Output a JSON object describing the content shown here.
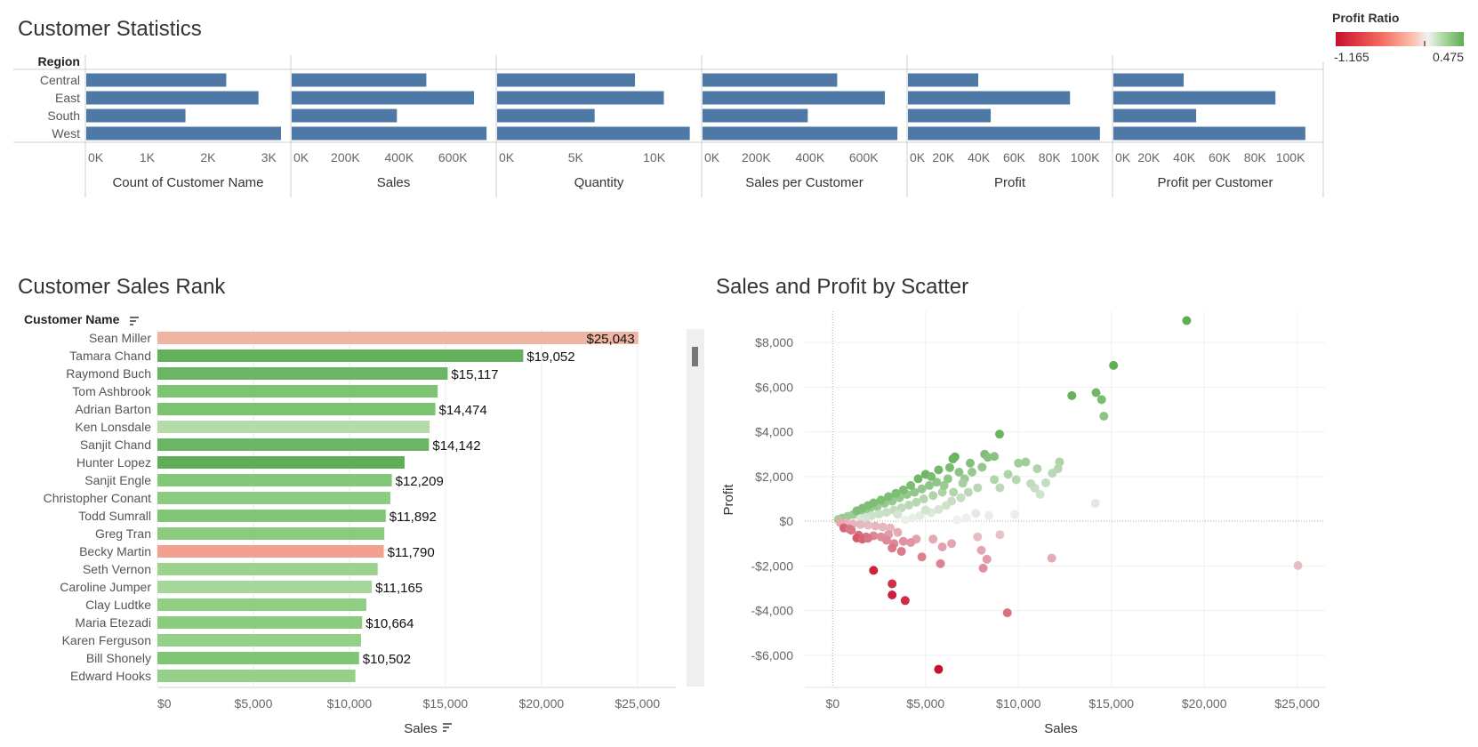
{
  "titles": {
    "stats": "Customer Statistics",
    "rank": "Customer Sales Rank",
    "scatter": "Sales and Profit by Scatter"
  },
  "legend": {
    "title": "Profit Ratio",
    "min_label": "-1.165",
    "max_label": "0.475",
    "colors": {
      "negative": "#c8102e",
      "neutral": "#f4f4f4",
      "positive": "#5cae50"
    }
  },
  "colors": {
    "stat_bar": "#4e79a7"
  },
  "chart_data": [
    {
      "type": "bar",
      "name": "Customer Statistics",
      "row_header": "Region",
      "categories": [
        "Central",
        "East",
        "South",
        "West"
      ],
      "panels": [
        {
          "label": "Count of Customer Name",
          "max": 3200,
          "values": [
            2300,
            2830,
            1630,
            3200
          ],
          "ticks": [
            0,
            1000,
            2000,
            3000
          ],
          "tick_labels": [
            "0K",
            "1K",
            "2K",
            "3K"
          ]
        },
        {
          "label": "Sales",
          "max": 725000,
          "values": [
            501240,
            678781,
            391722,
            725458
          ],
          "ticks": [
            0,
            200000,
            400000,
            600000
          ],
          "tick_labels": [
            "0K",
            "200K",
            "400K",
            "600K"
          ]
        },
        {
          "label": "Quantity",
          "max": 12400,
          "values": [
            8780,
            10618,
            6209,
            12266
          ],
          "ticks": [
            0,
            5000,
            10000
          ],
          "tick_labels": [
            "0K",
            "5K",
            "10K"
          ]
        },
        {
          "label": "Sales per Customer",
          "max": 725000,
          "values": [
            501240,
            678781,
            391722,
            725458
          ],
          "ticks": [
            0,
            200000,
            400000,
            600000
          ],
          "tick_labels": [
            "0K",
            "200K",
            "400K",
            "600K"
          ]
        },
        {
          "label": "Profit",
          "max": 110000,
          "values": [
            39706,
            91523,
            46749,
            108418
          ],
          "ticks": [
            0,
            20000,
            40000,
            60000,
            80000,
            100000
          ],
          "tick_labels": [
            "0K",
            "20K",
            "40K",
            "60K",
            "80K",
            "100K"
          ]
        },
        {
          "label": "Profit per Customer",
          "max": 110000,
          "values": [
            39706,
            91523,
            46749,
            108418
          ],
          "ticks": [
            0,
            20000,
            40000,
            60000,
            80000,
            100000
          ],
          "tick_labels": [
            "0K",
            "20K",
            "40K",
            "60K",
            "80K",
            "100K"
          ]
        }
      ]
    },
    {
      "type": "bar",
      "name": "Customer Sales Rank",
      "row_header": "Customer Name",
      "xlabel": "Sales",
      "xlim": [
        0,
        27000
      ],
      "x_ticks": [
        0,
        5000,
        10000,
        15000,
        20000,
        25000
      ],
      "x_tick_labels": [
        "$0",
        "$5,000",
        "$10,000",
        "$15,000",
        "$20,000",
        "$25,000"
      ],
      "rows": [
        {
          "name": "Sean Miller",
          "value": 25043,
          "label": "$25,043",
          "color": "#f0b4a2"
        },
        {
          "name": "Tamara Chand",
          "value": 19052,
          "label": "$19,052",
          "color": "#63b05d"
        },
        {
          "name": "Raymond Buch",
          "value": 15117,
          "label": "$15,117",
          "color": "#6ab664"
        },
        {
          "name": "Tom Ashbrook",
          "value": 14596,
          "label": "",
          "color": "#7cc472"
        },
        {
          "name": "Adrian Barton",
          "value": 14474,
          "label": "$14,474",
          "color": "#7ac470"
        },
        {
          "name": "Ken Lonsdale",
          "value": 14175,
          "label": "",
          "color": "#b5dba8"
        },
        {
          "name": "Sanjit Chand",
          "value": 14142,
          "label": "$14,142",
          "color": "#6ab664"
        },
        {
          "name": "Hunter Lopez",
          "value": 12873,
          "label": "",
          "color": "#5eae58"
        },
        {
          "name": "Sanjit Engle",
          "value": 12209,
          "label": "$12,209",
          "color": "#83c878"
        },
        {
          "name": "Christopher Conant",
          "value": 12129,
          "label": "",
          "color": "#8ccc80"
        },
        {
          "name": "Todd Sumrall",
          "value": 11892,
          "label": "$11,892",
          "color": "#80c676"
        },
        {
          "name": "Greg Tran",
          "value": 11820,
          "label": "",
          "color": "#8acb7e"
        },
        {
          "name": "Becky Martin",
          "value": 11790,
          "label": "$11,790",
          "color": "#f4a090"
        },
        {
          "name": "Seth Vernon",
          "value": 11471,
          "label": "",
          "color": "#9ad28e"
        },
        {
          "name": "Caroline Jumper",
          "value": 11165,
          "label": "$11,165",
          "color": "#a6d69a"
        },
        {
          "name": "Clay Ludtke",
          "value": 10880,
          "label": "",
          "color": "#90ce84"
        },
        {
          "name": "Maria Etezadi",
          "value": 10664,
          "label": "$10,664",
          "color": "#8acb7e"
        },
        {
          "name": "Karen Ferguson",
          "value": 10604,
          "label": "",
          "color": "#94d088"
        },
        {
          "name": "Bill Shonely",
          "value": 10502,
          "label": "$10,502",
          "color": "#7ec574"
        },
        {
          "name": "Edward Hooks",
          "value": 10310,
          "label": "",
          "color": "#94d088"
        }
      ]
    },
    {
      "type": "scatter",
      "name": "Sales and Profit by Scatter",
      "xlabel": "Sales",
      "ylabel": "Profit",
      "xlim": [
        -1500,
        26500
      ],
      "ylim": [
        -7400,
        9400
      ],
      "x_ticks": [
        0,
        5000,
        10000,
        15000,
        20000,
        25000
      ],
      "x_tick_labels": [
        "$0",
        "$5,000",
        "$10,000",
        "$15,000",
        "$20,000",
        "$25,000"
      ],
      "y_ticks": [
        -6000,
        -4000,
        -2000,
        0,
        2000,
        4000,
        6000,
        8000
      ],
      "y_tick_labels": [
        "-$6,000",
        "-$4,000",
        "-$2,000",
        "$0",
        "$2,000",
        "$4,000",
        "$6,000",
        "$8,000"
      ],
      "points": [
        [
          19052,
          8981,
          0.47
        ],
        [
          15117,
          6976,
          0.46
        ],
        [
          14175,
          5757,
          0.41
        ],
        [
          14474,
          5445,
          0.38
        ],
        [
          12873,
          5622,
          0.44
        ],
        [
          14596,
          4703,
          0.32
        ],
        [
          8982,
          3900,
          0.43
        ],
        [
          6583,
          2880,
          0.44
        ],
        [
          6470,
          2790,
          0.43
        ],
        [
          8180,
          3000,
          0.37
        ],
        [
          8350,
          2860,
          0.34
        ],
        [
          10390,
          2650,
          0.26
        ],
        [
          12209,
          2650,
          0.22
        ],
        [
          11010,
          2350,
          0.21
        ],
        [
          12129,
          2350,
          0.19
        ],
        [
          11820,
          2150,
          0.18
        ],
        [
          11471,
          1720,
          0.15
        ],
        [
          11165,
          1200,
          0.11
        ],
        [
          10880,
          1480,
          0.14
        ],
        [
          10664,
          1680,
          0.16
        ],
        [
          14142,
          800,
          0.06
        ],
        [
          9880,
          1860,
          0.19
        ],
        [
          9440,
          2100,
          0.22
        ],
        [
          8700,
          1860,
          0.21
        ],
        [
          8040,
          2420,
          0.3
        ],
        [
          7500,
          2200,
          0.29
        ],
        [
          7100,
          1900,
          0.27
        ],
        [
          6800,
          2200,
          0.32
        ],
        [
          6200,
          1900,
          0.31
        ],
        [
          5600,
          1750,
          0.31
        ],
        [
          5200,
          1600,
          0.31
        ],
        [
          4800,
          1450,
          0.3
        ],
        [
          4400,
          1300,
          0.3
        ],
        [
          4000,
          1200,
          0.3
        ],
        [
          3600,
          1050,
          0.29
        ],
        [
          3200,
          900,
          0.28
        ],
        [
          2800,
          800,
          0.29
        ],
        [
          2400,
          650,
          0.27
        ],
        [
          2000,
          560,
          0.28
        ],
        [
          1700,
          470,
          0.28
        ],
        [
          1400,
          390,
          0.28
        ],
        [
          1100,
          300,
          0.27
        ],
        [
          800,
          220,
          0.27
        ],
        [
          500,
          140,
          0.28
        ],
        [
          300,
          80,
          0.26
        ],
        [
          5900,
          1300,
          0.22
        ],
        [
          5400,
          1150,
          0.21
        ],
        [
          4900,
          1000,
          0.2
        ],
        [
          4500,
          850,
          0.19
        ],
        [
          4100,
          720,
          0.18
        ],
        [
          3700,
          600,
          0.16
        ],
        [
          3300,
          500,
          0.15
        ],
        [
          2900,
          400,
          0.14
        ],
        [
          2500,
          320,
          0.13
        ],
        [
          2100,
          250,
          0.12
        ],
        [
          1800,
          180,
          0.1
        ],
        [
          1500,
          120,
          0.08
        ],
        [
          7800,
          1500,
          0.19
        ],
        [
          7300,
          1300,
          0.18
        ],
        [
          6900,
          1050,
          0.15
        ],
        [
          6400,
          900,
          0.14
        ],
        [
          6100,
          700,
          0.11
        ],
        [
          5700,
          520,
          0.09
        ],
        [
          5300,
          380,
          0.07
        ],
        [
          4700,
          250,
          0.05
        ],
        [
          4300,
          150,
          0.03
        ],
        [
          3900,
          60,
          0.02
        ],
        [
          9800,
          300,
          0.03
        ],
        [
          8400,
          250,
          0.03
        ],
        [
          7700,
          350,
          0.05
        ],
        [
          7200,
          150,
          0.02
        ],
        [
          6700,
          60,
          0.01
        ],
        [
          5000,
          500,
          0.1
        ],
        [
          3500,
          300,
          0.09
        ],
        [
          6000,
          1600,
          0.27
        ],
        [
          6500,
          1300,
          0.2
        ],
        [
          7000,
          1700,
          0.24
        ],
        [
          9000,
          1500,
          0.17
        ],
        [
          10000,
          2600,
          0.26
        ],
        [
          5000,
          2100,
          0.42
        ],
        [
          4600,
          1900,
          0.41
        ],
        [
          4200,
          1600,
          0.38
        ],
        [
          3800,
          1400,
          0.37
        ],
        [
          3400,
          1250,
          0.37
        ],
        [
          3000,
          1100,
          0.37
        ],
        [
          2600,
          950,
          0.37
        ],
        [
          2200,
          820,
          0.37
        ],
        [
          1900,
          700,
          0.37
        ],
        [
          1600,
          580,
          0.36
        ],
        [
          1300,
          470,
          0.36
        ],
        [
          5700,
          2300,
          0.4
        ],
        [
          5300,
          2000,
          0.38
        ],
        [
          6300,
          2400,
          0.38
        ],
        [
          7400,
          2600,
          0.35
        ],
        [
          8700,
          2900,
          0.33
        ],
        [
          3100,
          -300,
          -0.1
        ],
        [
          2700,
          -260,
          -0.1
        ],
        [
          2300,
          -220,
          -0.1
        ],
        [
          1900,
          -180,
          -0.09
        ],
        [
          1500,
          -150,
          -0.1
        ],
        [
          1100,
          -120,
          -0.11
        ],
        [
          700,
          -80,
          -0.11
        ],
        [
          400,
          -60,
          -0.15
        ],
        [
          3500,
          -500,
          -0.14
        ],
        [
          3000,
          -600,
          -0.2
        ],
        [
          2600,
          -700,
          -0.27
        ],
        [
          2200,
          -650,
          -0.3
        ],
        [
          1800,
          -700,
          -0.39
        ],
        [
          1400,
          -620,
          -0.44
        ],
        [
          1000,
          -400,
          -0.4
        ],
        [
          600,
          -300,
          -0.5
        ],
        [
          4500,
          -800,
          -0.18
        ],
        [
          4200,
          -950,
          -0.23
        ],
        [
          3800,
          -900,
          -0.24
        ],
        [
          3300,
          -1000,
          -0.3
        ],
        [
          2900,
          -850,
          -0.29
        ],
        [
          5400,
          -800,
          -0.15
        ],
        [
          5900,
          -1150,
          -0.19
        ],
        [
          6400,
          -1000,
          -0.16
        ],
        [
          4800,
          -1600,
          -0.33
        ],
        [
          3700,
          -1350,
          -0.36
        ],
        [
          3200,
          -1200,
          -0.38
        ],
        [
          5800,
          -1900,
          -0.33
        ],
        [
          7800,
          -700,
          -0.09
        ],
        [
          9000,
          -600,
          -0.07
        ],
        [
          8000,
          -1300,
          -0.16
        ],
        [
          8100,
          -2100,
          -0.26
        ],
        [
          8300,
          -1700,
          -0.2
        ],
        [
          11790,
          -1650,
          -0.14
        ],
        [
          25043,
          -1981,
          -0.08
        ],
        [
          2200,
          -2200,
          -1.0
        ],
        [
          3200,
          -2800,
          -0.88
        ],
        [
          3200,
          -3300,
          -1.03
        ],
        [
          3900,
          -3550,
          -0.91
        ],
        [
          9400,
          -4100,
          -0.44
        ],
        [
          5700,
          -6630,
          -1.165
        ],
        [
          1300,
          -750,
          -0.58
        ],
        [
          1600,
          -800,
          -0.5
        ],
        [
          1900,
          -760,
          -0.4
        ],
        [
          900,
          -350,
          -0.39
        ]
      ]
    }
  ]
}
